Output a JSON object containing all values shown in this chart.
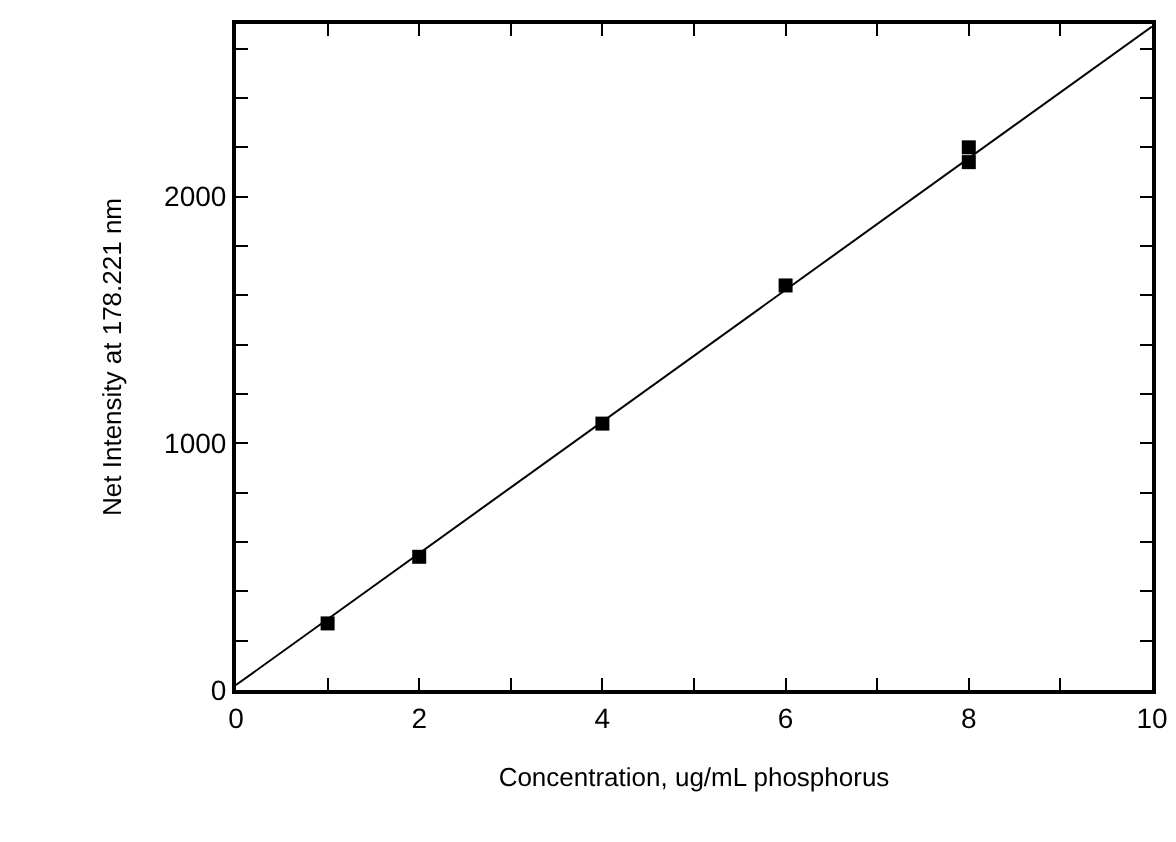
{
  "chart_data": {
    "type": "scatter",
    "xlabel": "Concentration, ug/mL phosphorus",
    "ylabel": "Net Intensity at 178.221 nm",
    "xlim": [
      0,
      10
    ],
    "xticks": [
      0,
      {
        "value": 1,
        "label": null
      },
      2,
      {
        "value": 3,
        "label": null
      },
      4,
      {
        "value": 5,
        "label": null
      },
      6,
      {
        "value": 7,
        "label": null
      },
      8,
      {
        "value": 9,
        "label": null
      },
      10
    ],
    "ylim": [
      0,
      2700
    ],
    "yticks": [
      0,
      {
        "value": 200,
        "label": null
      },
      {
        "value": 400,
        "label": null
      },
      {
        "value": 600,
        "label": null
      },
      {
        "value": 800,
        "label": null
      },
      1000,
      {
        "value": 1200,
        "label": null
      },
      {
        "value": 1400,
        "label": null
      },
      {
        "value": 1600,
        "label": null
      },
      {
        "value": 1800,
        "label": null
      },
      2000,
      {
        "value": 2200,
        "label": null
      },
      {
        "value": 2400,
        "label": null
      },
      {
        "value": 2600,
        "label": null
      }
    ],
    "grid": false,
    "marker": "square",
    "series": [
      {
        "color": "#000000",
        "x": [
          1,
          2,
          4,
          6,
          8,
          8
        ],
        "values": [
          270,
          540,
          1080,
          1640,
          2200,
          2140
        ]
      },
      {
        "type": "line",
        "color": "#000000",
        "marker": "none",
        "x": [
          0,
          10
        ],
        "values": [
          20,
          2690
        ]
      }
    ]
  }
}
